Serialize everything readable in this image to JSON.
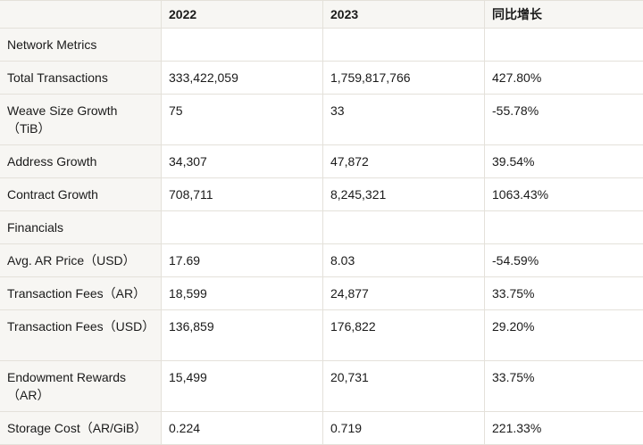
{
  "table": {
    "headers": [
      "",
      "2022",
      "2023",
      "同比增长"
    ],
    "rows": [
      {
        "label": "Network Metrics",
        "v2022": "",
        "v2023": "",
        "yoy": "",
        "tall": false
      },
      {
        "label": "Total Transactions",
        "v2022": "333,422,059",
        "v2023": "1,759,817,766",
        "yoy": "427.80%",
        "tall": false
      },
      {
        "label": "Weave Size Growth（TiB）",
        "v2022": "75",
        "v2023": "33",
        "yoy": "-55.78%",
        "tall": true
      },
      {
        "label": "Address Growth",
        "v2022": "34,307",
        "v2023": "47,872",
        "yoy": "39.54%",
        "tall": false
      },
      {
        "label": "Contract Growth",
        "v2022": "708,711",
        "v2023": "8,245,321",
        "yoy": "1063.43%",
        "tall": false
      },
      {
        "label": "Financials",
        "v2022": "",
        "v2023": "",
        "yoy": "",
        "tall": false
      },
      {
        "label": "Avg. AR Price（USD）",
        "v2022": "17.69",
        "v2023": "8.03",
        "yoy": "-54.59%",
        "tall": false
      },
      {
        "label": "Transaction Fees（AR）",
        "v2022": "18,599",
        "v2023": "24,877",
        "yoy": "33.75%",
        "tall": false
      },
      {
        "label": "Transaction Fees（USD）",
        "v2022": "136,859",
        "v2023": "176,822",
        "yoy": "29.20%",
        "tall": true
      },
      {
        "label": "Endowment Rewards（AR）",
        "v2022": "15,499",
        "v2023": "20,731",
        "yoy": "33.75%",
        "tall": true
      },
      {
        "label": "Storage Cost（AR/GiB）",
        "v2022": "0.224",
        "v2023": "0.719",
        "yoy": "221.33%",
        "tall": false
      }
    ]
  }
}
